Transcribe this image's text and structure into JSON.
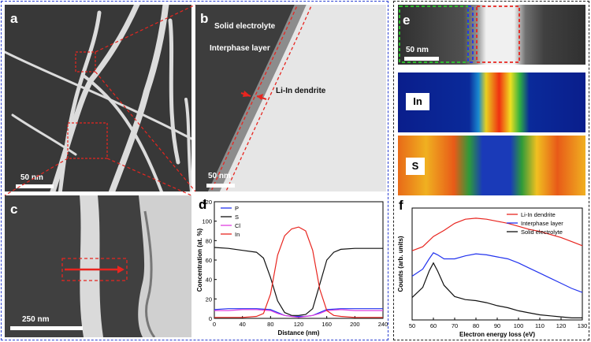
{
  "panels": {
    "a": {
      "label": "a",
      "scale": "50 nm"
    },
    "b": {
      "label": "b",
      "solid": "Solid electrolyte",
      "interphase": "Interphase layer",
      "dendrite": "Li-In dendrite",
      "scale": "50 nm"
    },
    "c": {
      "label": "c",
      "scale": "250 nm"
    },
    "d": {
      "label": "d"
    },
    "e": {
      "label": "e",
      "scale": "50 nm",
      "map_in": "In",
      "map_s": "S"
    },
    "f": {
      "label": "f"
    }
  },
  "colors": {
    "blue_frame": "#2a3fd1",
    "red": "#e8251f",
    "black": "#111111",
    "magenta": "#e040e0",
    "blue": "#2233ee"
  },
  "chart_data": [
    {
      "type": "line",
      "panel": "d",
      "xlabel": "Distance (nm)",
      "ylabel": "Concentration (at. %)",
      "xlim": [
        0,
        240
      ],
      "ylim": [
        0,
        120
      ],
      "xticks": [
        0,
        40,
        80,
        120,
        160,
        200,
        240
      ],
      "yticks": [
        0,
        20,
        40,
        60,
        80,
        100,
        120
      ],
      "legend": "top-left",
      "series": [
        {
          "name": "P",
          "color": "#2233ee",
          "x": [
            0,
            20,
            40,
            60,
            80,
            90,
            100,
            110,
            120,
            130,
            140,
            150,
            160,
            180,
            200,
            220,
            240
          ],
          "y": [
            9,
            10,
            10,
            10,
            9,
            6,
            3,
            2,
            2,
            2,
            3,
            6,
            9,
            10,
            10,
            10,
            10
          ]
        },
        {
          "name": "S",
          "color": "#111111",
          "x": [
            0,
            20,
            40,
            60,
            70,
            80,
            90,
            100,
            110,
            120,
            130,
            140,
            150,
            160,
            170,
            180,
            200,
            220,
            240
          ],
          "y": [
            73,
            72,
            70,
            68,
            62,
            42,
            18,
            6,
            3,
            3,
            4,
            10,
            35,
            60,
            68,
            71,
            72,
            72,
            72
          ]
        },
        {
          "name": "Cl",
          "color": "#e040e0",
          "x": [
            0,
            20,
            40,
            60,
            80,
            90,
            100,
            110,
            120,
            130,
            140,
            150,
            160,
            180,
            200,
            220,
            240
          ],
          "y": [
            8,
            8,
            9,
            9,
            8,
            5,
            3,
            2,
            1,
            2,
            3,
            5,
            8,
            9,
            8,
            8,
            8
          ]
        },
        {
          "name": "In",
          "color": "#e8251f",
          "x": [
            0,
            20,
            40,
            60,
            70,
            80,
            90,
            100,
            110,
            120,
            130,
            140,
            150,
            160,
            170,
            180,
            200,
            220,
            240
          ],
          "y": [
            1,
            1,
            1,
            2,
            5,
            25,
            65,
            85,
            92,
            94,
            90,
            70,
            30,
            8,
            3,
            2,
            1,
            1,
            1
          ]
        }
      ]
    },
    {
      "type": "line",
      "panel": "f",
      "xlabel": "Electron energy loss (eV)",
      "ylabel": "Counts (arb. units)",
      "xlim": [
        50,
        130
      ],
      "xticks": [
        50,
        60,
        70,
        80,
        90,
        100,
        110,
        120,
        130
      ],
      "legend": "top-right",
      "series": [
        {
          "name": "Li-In dendrite",
          "color": "#e8251f",
          "x": [
            50,
            55,
            60,
            65,
            70,
            75,
            80,
            85,
            90,
            95,
            100,
            105,
            110,
            115,
            120,
            125,
            130
          ],
          "y": [
            0.68,
            0.72,
            0.82,
            0.88,
            0.95,
            0.99,
            1.0,
            0.99,
            0.97,
            0.95,
            0.92,
            0.89,
            0.87,
            0.84,
            0.81,
            0.77,
            0.73
          ]
        },
        {
          "name": "Interphase layer",
          "color": "#2233ee",
          "x": [
            50,
            55,
            58,
            60,
            62,
            65,
            70,
            75,
            80,
            85,
            90,
            95,
            100,
            105,
            110,
            115,
            120,
            125,
            130
          ],
          "y": [
            0.43,
            0.5,
            0.6,
            0.66,
            0.64,
            0.6,
            0.6,
            0.63,
            0.65,
            0.64,
            0.62,
            0.6,
            0.56,
            0.51,
            0.46,
            0.41,
            0.36,
            0.31,
            0.27
          ]
        },
        {
          "name": "Solid electrolyte",
          "color": "#111111",
          "x": [
            50,
            55,
            58,
            60,
            62,
            65,
            70,
            75,
            80,
            85,
            90,
            95,
            100,
            105,
            110,
            115,
            120,
            125,
            130
          ],
          "y": [
            0.22,
            0.32,
            0.48,
            0.56,
            0.48,
            0.34,
            0.23,
            0.2,
            0.19,
            0.17,
            0.14,
            0.12,
            0.09,
            0.07,
            0.05,
            0.04,
            0.03,
            0.02,
            0.02
          ]
        }
      ]
    }
  ]
}
